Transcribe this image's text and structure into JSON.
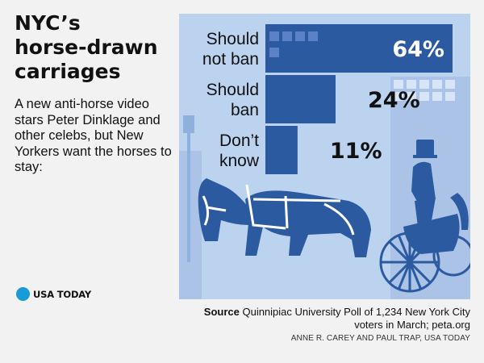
{
  "header": {
    "title_lines": [
      "NYC’s",
      "horse-drawn",
      "carriages"
    ],
    "subtitle": "A new anti-horse video stars Peter Dinklage and other celebs, but New Yorkers want the horses to stay:"
  },
  "brand": {
    "logo_text": "USA TODAY",
    "logo_color": "#1a9bd7"
  },
  "chart_data": {
    "type": "bar",
    "orientation": "horizontal",
    "title": "NYC’s horse-drawn carriages",
    "categories": [
      [
        "Should",
        "not ban"
      ],
      [
        "Should",
        "ban"
      ],
      [
        "Don’t",
        "know"
      ]
    ],
    "values": [
      64,
      24,
      11
    ],
    "value_labels": [
      "64%",
      "24%",
      "11%"
    ],
    "xlim": [
      0,
      64
    ],
    "grid": false,
    "legend": "none",
    "bar_color": "#2c5aa0",
    "panel_color": "#bcd3f0",
    "illustration_color": "#2c5aa0"
  },
  "footer": {
    "source_label": "Source",
    "source_text": " Quinnipiac University Poll of 1,234 New York City voters in March; peta.org",
    "credit": "ANNE R. CAREY AND PAUL TRAP, USA TODAY"
  }
}
